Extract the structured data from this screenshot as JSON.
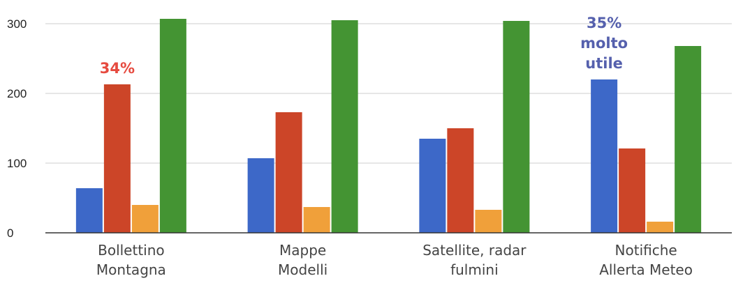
{
  "chart_data": {
    "type": "bar",
    "title": "",
    "xlabel": "",
    "ylabel": "",
    "ylim": [
      0,
      300
    ],
    "yticks": [
      0,
      100,
      200,
      300
    ],
    "grid": true,
    "legend": "none",
    "categories": [
      [
        "Bollettino",
        "Montagna"
      ],
      [
        "Mappe",
        "Modelli"
      ],
      [
        "Satellite, radar",
        "fulmini"
      ],
      [
        "Notifiche",
        "Allerta Meteo"
      ]
    ],
    "series": [
      {
        "color": "#3d68c8",
        "values": [
          64,
          107,
          135,
          220
        ]
      },
      {
        "color": "#cc4528",
        "values": [
          213,
          173,
          150,
          121
        ]
      },
      {
        "color": "#f0a03a",
        "values": [
          40,
          37,
          33,
          16
        ]
      },
      {
        "color": "#449433",
        "values": [
          307,
          305,
          304,
          268
        ]
      }
    ],
    "annotations": [
      {
        "category": 0,
        "series": 1,
        "lines": [
          "34%"
        ],
        "color": "#e64a3f"
      },
      {
        "category": 3,
        "series": 0,
        "lines": [
          "35%",
          "molto",
          "utile"
        ],
        "color": "#5560ad"
      }
    ]
  }
}
